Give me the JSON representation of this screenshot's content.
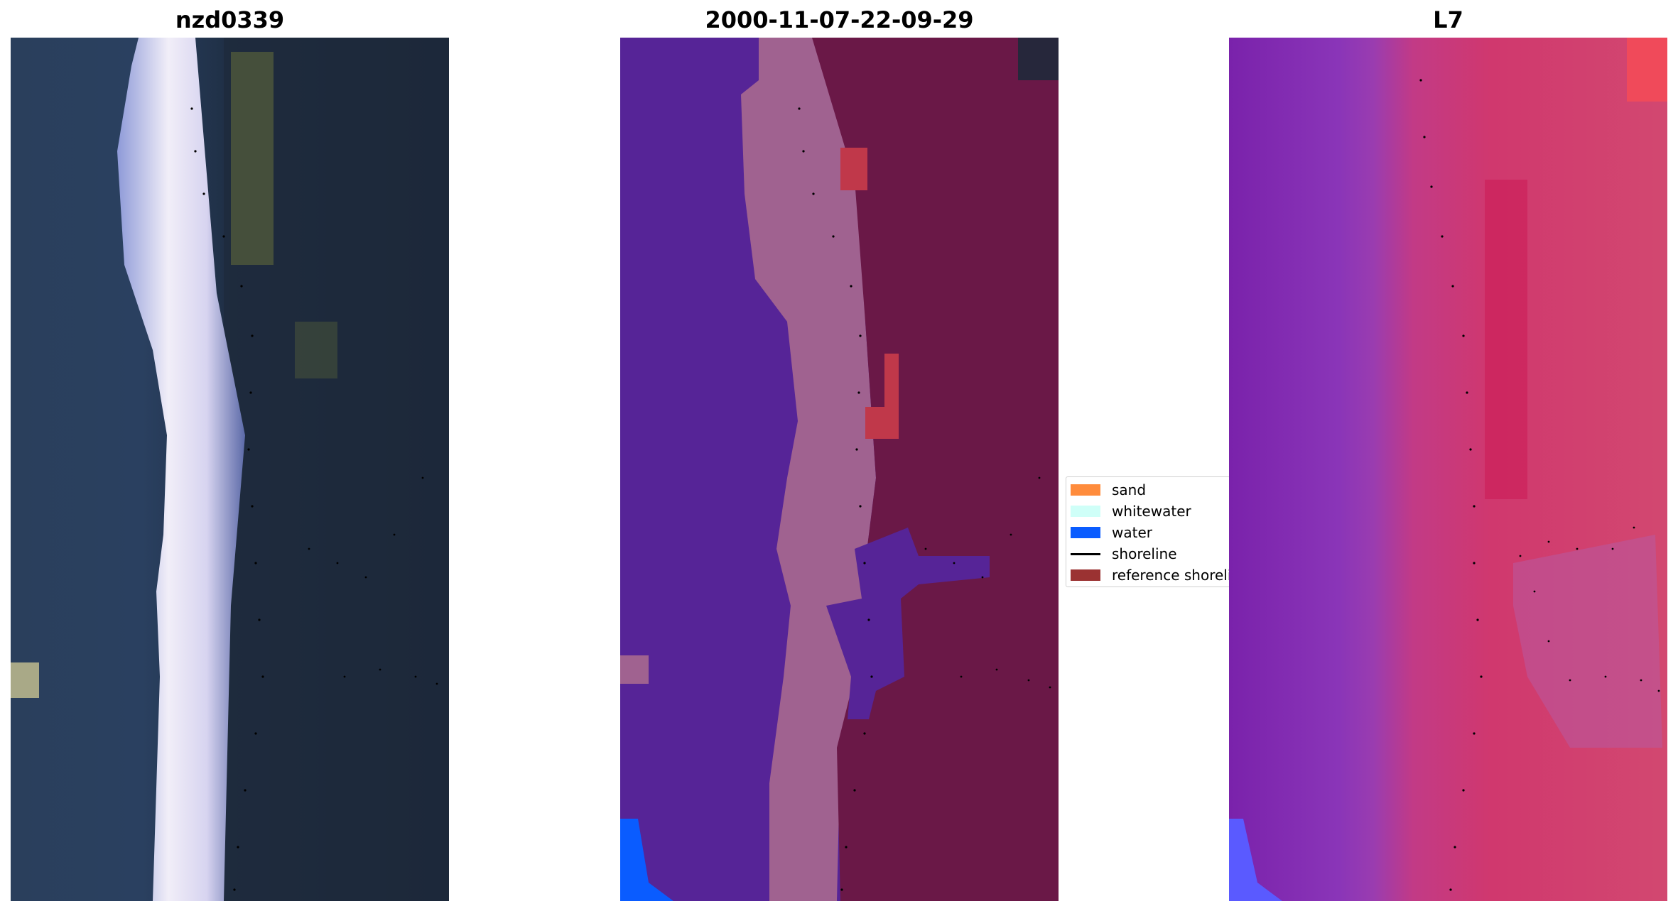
{
  "panels": [
    {
      "title": "nzd0339"
    },
    {
      "title": "2000-11-07-22-09-29"
    },
    {
      "title": "L7"
    }
  ],
  "legend": {
    "items": [
      {
        "label": "sand",
        "color": "#ff8c3c",
        "kind": "patch"
      },
      {
        "label": "whitewater",
        "color": "#cffff8",
        "kind": "patch"
      },
      {
        "label": "water",
        "color": "#0a5cff",
        "kind": "patch"
      },
      {
        "label": "shoreline",
        "color": "#000000",
        "kind": "line"
      },
      {
        "label": "reference shoreline",
        "color": "#9b3232",
        "kind": "patch"
      }
    ]
  },
  "colors": {
    "water_class": "#0a5cff",
    "ocean": "#562497",
    "surf_zone": "#a06290",
    "land": "#6a1847",
    "sand_patch": "#c0384a"
  }
}
